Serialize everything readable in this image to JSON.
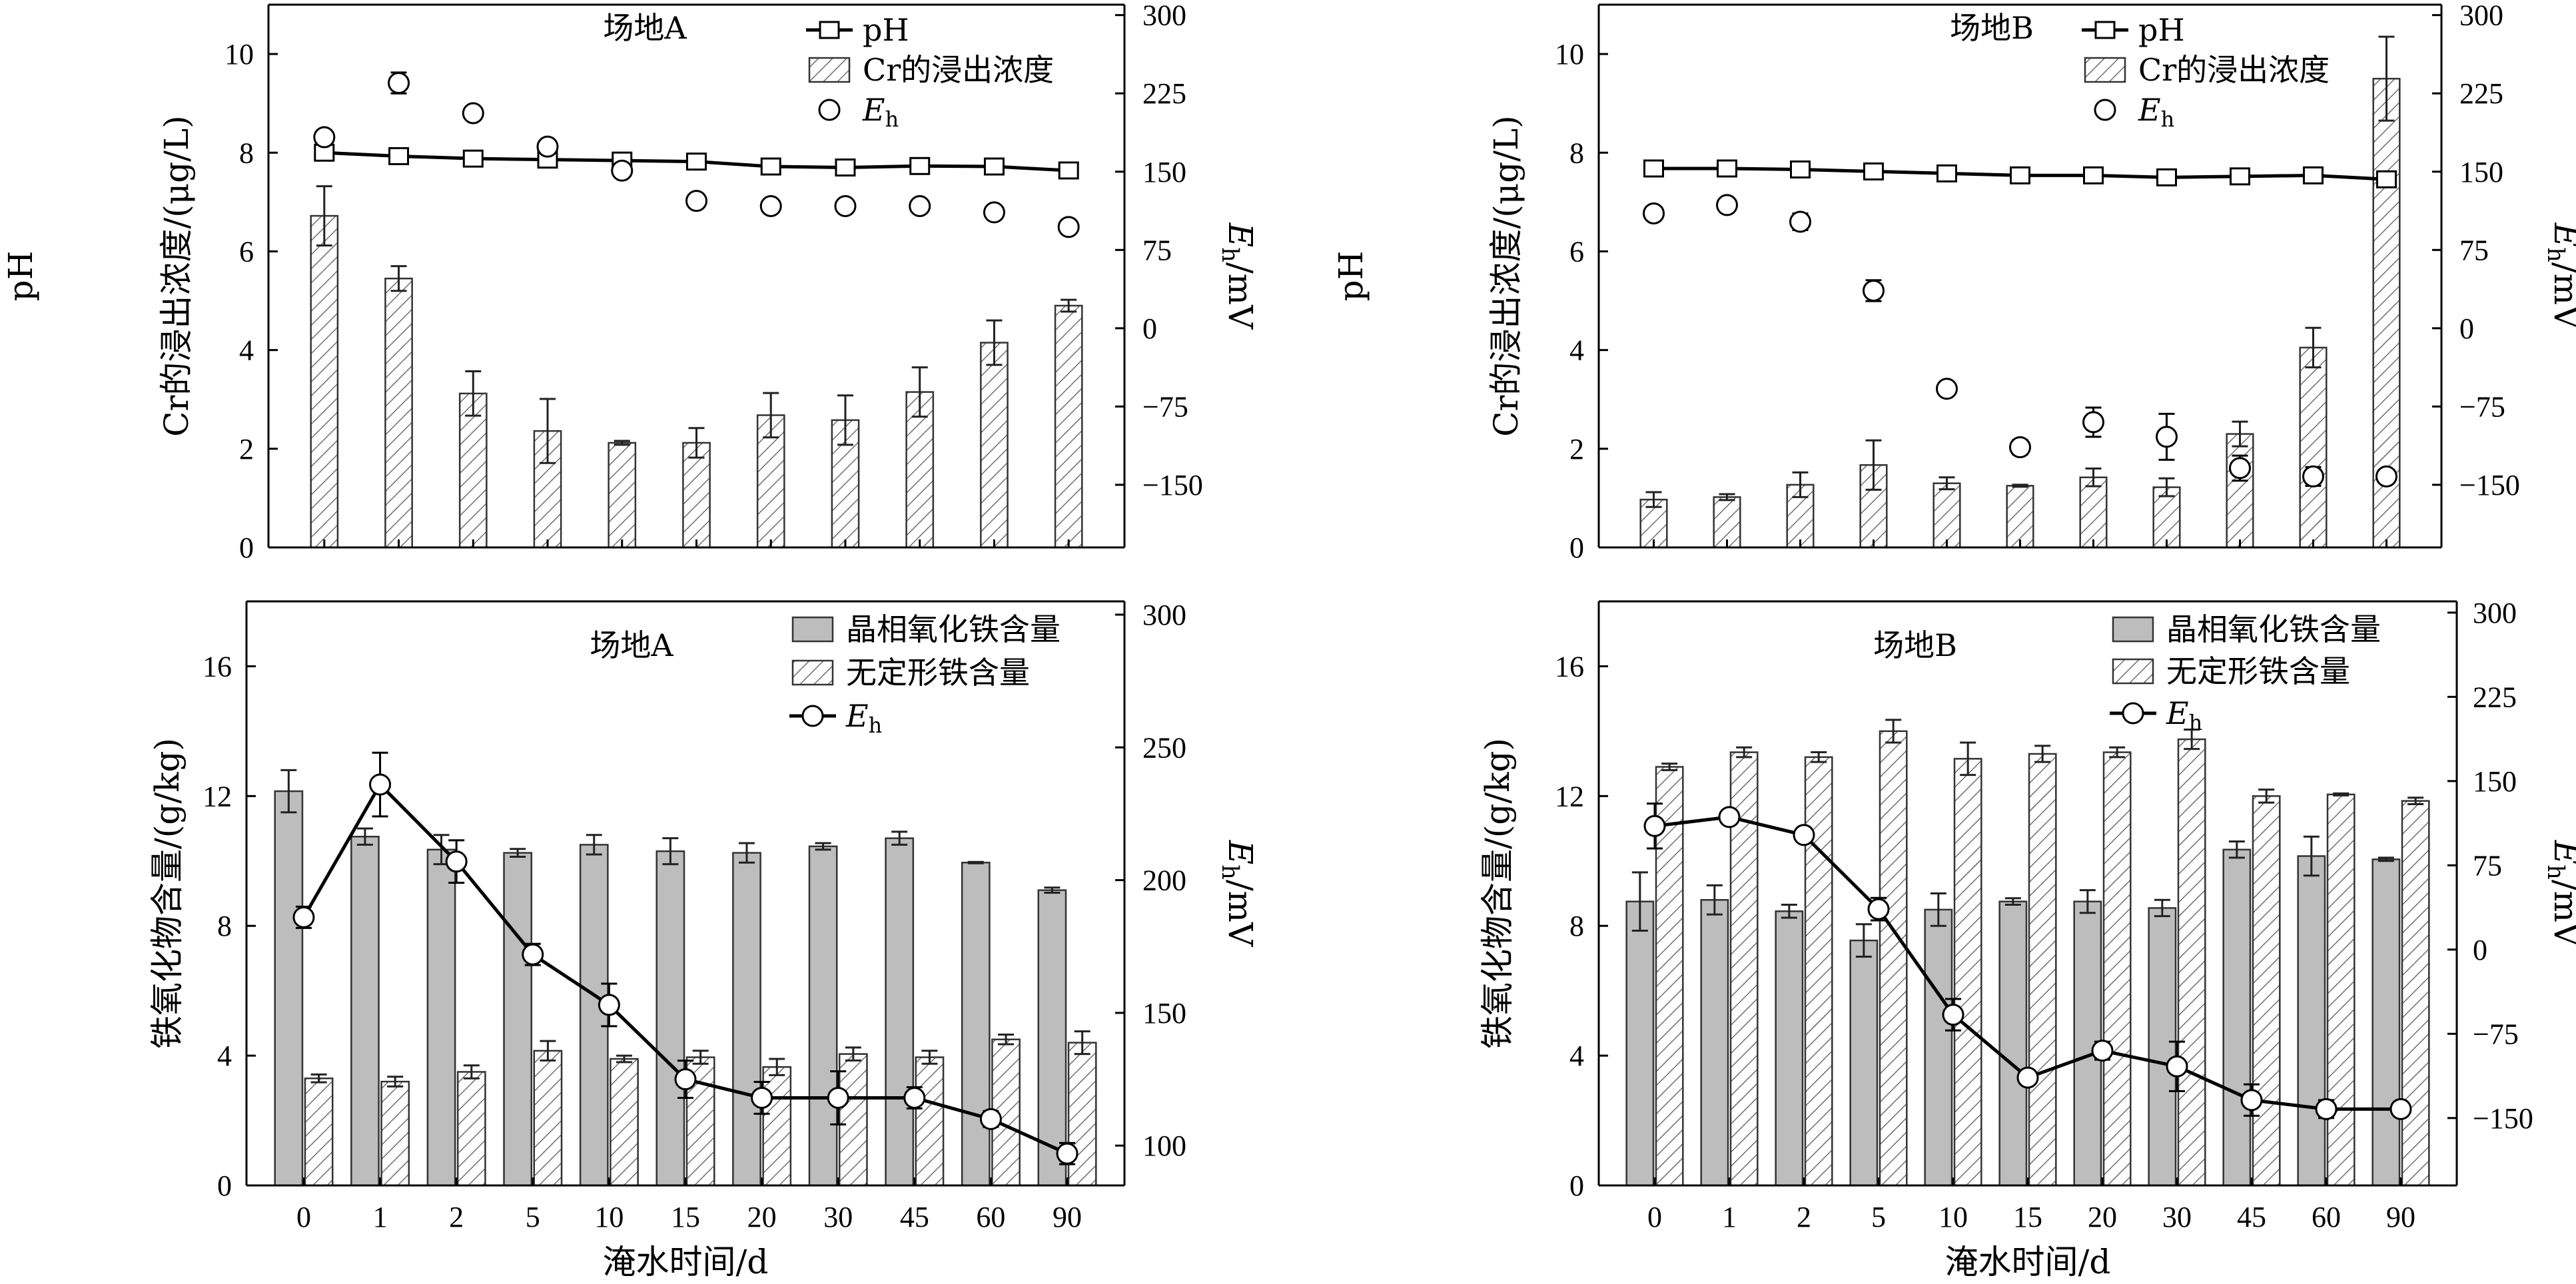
{
  "chart_data": [
    {
      "type": "bar",
      "panel": "top-left",
      "title": "场地A",
      "categories": [
        "0",
        "1",
        "2",
        "5",
        "10",
        "15",
        "20",
        "30",
        "45",
        "60",
        "90"
      ],
      "ylabel_left": "Cr的浸出浓度/(μg/L)",
      "ylabel_far_left": "pH",
      "ylabel_right": "Eh/mV",
      "ylim": [
        0,
        11
      ],
      "yticks": [
        0,
        2,
        4,
        6,
        8,
        10
      ],
      "y2lim": [
        -210,
        310
      ],
      "y2ticks": [
        -150,
        -75,
        0,
        75,
        150,
        225,
        300
      ],
      "legend": [
        "pH",
        "Cr的浸出浓度",
        "Eh"
      ],
      "series": [
        {
          "name": "Cr的浸出浓度",
          "kind": "bar",
          "values": [
            6.72,
            5.45,
            3.12,
            2.36,
            2.12,
            2.12,
            2.68,
            2.58,
            3.15,
            4.15,
            4.9
          ],
          "errors": [
            0.6,
            0.25,
            0.45,
            0.65,
            0.04,
            0.3,
            0.45,
            0.5,
            0.5,
            0.45,
            0.12
          ]
        },
        {
          "name": "pH",
          "kind": "line-square",
          "values": [
            8.0,
            7.93,
            7.88,
            7.86,
            7.84,
            7.82,
            7.72,
            7.7,
            7.73,
            7.72,
            7.64
          ],
          "errors": [
            0.04,
            0.05,
            0.05,
            0.04,
            0.04,
            0.04,
            0.04,
            0.04,
            0.04,
            0.04,
            0.04
          ]
        },
        {
          "name": "Eh",
          "kind": "circle",
          "values": [
            183,
            235,
            206,
            174,
            151,
            122,
            117,
            117,
            117,
            111,
            97
          ],
          "errors": [
            5,
            10,
            5,
            5,
            6,
            4,
            4,
            6,
            4,
            4,
            4
          ]
        }
      ]
    },
    {
      "type": "bar",
      "panel": "top-right",
      "title": "场地B",
      "categories": [
        "0",
        "1",
        "2",
        "5",
        "10",
        "15",
        "20",
        "30",
        "45",
        "60",
        "90"
      ],
      "ylabel_left": "Cr的浸出浓度/(μg/L)",
      "ylabel_far_left": "pH",
      "ylabel_right": "Eh/mV",
      "ylim": [
        0,
        11
      ],
      "yticks": [
        0,
        2,
        4,
        6,
        8,
        10
      ],
      "y2lim": [
        -210,
        310
      ],
      "y2ticks": [
        -150,
        -75,
        0,
        75,
        150,
        225,
        300
      ],
      "legend": [
        "pH",
        "Cr的浸出浓度",
        "Eh"
      ],
      "series": [
        {
          "name": "Cr的浸出浓度",
          "kind": "bar",
          "values": [
            0.97,
            1.02,
            1.27,
            1.67,
            1.3,
            1.25,
            1.42,
            1.22,
            2.3,
            4.05,
            9.5
          ],
          "errors": [
            0.15,
            0.06,
            0.25,
            0.5,
            0.12,
            0.02,
            0.18,
            0.18,
            0.25,
            0.4,
            0.85
          ]
        },
        {
          "name": "pH",
          "kind": "line-square",
          "values": [
            7.68,
            7.68,
            7.66,
            7.62,
            7.58,
            7.54,
            7.54,
            7.5,
            7.52,
            7.54,
            7.46
          ],
          "errors": [
            0.03,
            0.03,
            0.03,
            0.03,
            0.03,
            0.03,
            0.03,
            0.03,
            0.03,
            0.03,
            0.03
          ]
        },
        {
          "name": "Eh",
          "kind": "circle",
          "values": [
            110,
            118,
            102,
            36,
            -58,
            -114,
            -90,
            -104,
            -134,
            -142,
            -142
          ],
          "errors": [
            6,
            6,
            8,
            10,
            5,
            7,
            14,
            22,
            12,
            9,
            5
          ]
        }
      ]
    },
    {
      "type": "bar",
      "panel": "bottom-left",
      "title": "场地A",
      "categories": [
        "0",
        "1",
        "2",
        "5",
        "10",
        "15",
        "20",
        "30",
        "45",
        "60",
        "90"
      ],
      "xlabel": "淹水时间/d",
      "ylabel_left": "铁氧化物含量/(g/kg)",
      "ylabel_right": "Eh/mV",
      "ylim": [
        0,
        18
      ],
      "yticks": [
        0,
        4,
        8,
        12,
        16
      ],
      "y2lim": [
        85,
        305
      ],
      "y2ticks": [
        100,
        150,
        200,
        250,
        300
      ],
      "legend": [
        "晶相氧化铁含量",
        "无定形铁含量",
        "Eh"
      ],
      "series": [
        {
          "name": "晶相氧化铁含量",
          "kind": "bar-solid",
          "values": [
            12.15,
            10.75,
            10.35,
            10.25,
            10.5,
            10.3,
            10.25,
            10.45,
            10.7,
            9.95,
            9.1
          ],
          "errors": [
            0.65,
            0.25,
            0.45,
            0.12,
            0.3,
            0.4,
            0.3,
            0.1,
            0.2,
            0.02,
            0.08
          ]
        },
        {
          "name": "无定形铁含量",
          "kind": "bar-hatch",
          "values": [
            3.3,
            3.2,
            3.5,
            4.15,
            3.9,
            3.95,
            3.65,
            4.05,
            3.95,
            4.5,
            4.4
          ],
          "errors": [
            0.12,
            0.15,
            0.2,
            0.3,
            0.1,
            0.2,
            0.25,
            0.2,
            0.2,
            0.15,
            0.35
          ]
        },
        {
          "name": "Eh",
          "kind": "line-circle",
          "values": [
            186,
            236,
            207,
            172,
            153,
            125,
            118,
            118,
            118,
            110,
            97
          ],
          "errors": [
            4,
            12,
            8,
            4,
            8,
            7,
            6,
            10,
            4,
            3,
            4
          ]
        }
      ]
    },
    {
      "type": "bar",
      "panel": "bottom-right",
      "title": "场地B",
      "categories": [
        "0",
        "1",
        "2",
        "5",
        "10",
        "15",
        "20",
        "30",
        "45",
        "60",
        "90"
      ],
      "xlabel": "淹水时间/d",
      "ylabel_left": "铁氧化物含量/(g/kg)",
      "ylabel_right": "Eh/mV",
      "ylim": [
        0,
        18
      ],
      "yticks": [
        0,
        4,
        8,
        12,
        16
      ],
      "y2lim": [
        -210,
        310
      ],
      "y2ticks": [
        -150,
        -75,
        0,
        75,
        150,
        225,
        300
      ],
      "legend": [
        "晶相氧化铁含量",
        "无定形铁含量",
        "Eh"
      ],
      "series": [
        {
          "name": "晶相氧化铁含量",
          "kind": "bar-solid",
          "values": [
            8.75,
            8.8,
            8.45,
            7.55,
            8.5,
            8.75,
            8.75,
            8.55,
            10.35,
            10.15,
            10.05
          ],
          "errors": [
            0.9,
            0.45,
            0.2,
            0.5,
            0.5,
            0.1,
            0.35,
            0.25,
            0.25,
            0.6,
            0.05
          ]
        },
        {
          "name": "无定形铁含量",
          "kind": "bar-hatch",
          "values": [
            12.9,
            13.35,
            13.2,
            14.0,
            13.15,
            13.3,
            13.35,
            13.75,
            12.0,
            12.05,
            11.85
          ],
          "errors": [
            0.1,
            0.15,
            0.15,
            0.35,
            0.5,
            0.25,
            0.15,
            0.3,
            0.2,
            0.03,
            0.1
          ]
        },
        {
          "name": "Eh",
          "kind": "line-circle",
          "values": [
            110,
            118,
            102,
            36,
            -58,
            -114,
            -90,
            -104,
            -134,
            -142,
            -142
          ],
          "errors": [
            20,
            6,
            6,
            10,
            14,
            6,
            8,
            22,
            14,
            8,
            6
          ]
        }
      ]
    }
  ]
}
